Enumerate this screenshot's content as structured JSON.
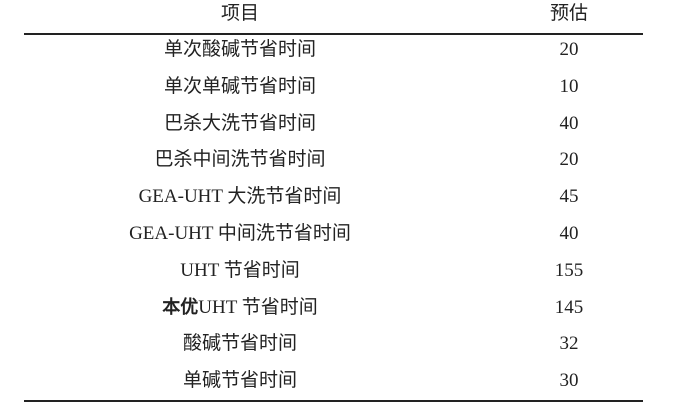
{
  "table": {
    "headers": [
      "项目",
      "预估"
    ],
    "rows": [
      {
        "prefix": "",
        "item": "单次酸碱节省时间",
        "value": "20"
      },
      {
        "prefix": "",
        "item": "单次单碱节省时间",
        "value": "10"
      },
      {
        "prefix": "",
        "item": "巴杀大洗节省时间",
        "value": "40"
      },
      {
        "prefix": "",
        "item": "巴杀中间洗节省时间",
        "value": "20"
      },
      {
        "prefix": "",
        "item": "GEA-UHT 大洗节省时间",
        "value": "45"
      },
      {
        "prefix": "",
        "item": "GEA-UHT 中间洗节省时间",
        "value": "40"
      },
      {
        "prefix": "",
        "item": "UHT 节省时间",
        "value": "155"
      },
      {
        "prefix": "本优",
        "item": "UHT 节省时间",
        "value": "145"
      },
      {
        "prefix": "",
        "item": "酸碱节省时间",
        "value": "32"
      },
      {
        "prefix": "",
        "item": "单碱节省时间",
        "value": "30"
      }
    ]
  }
}
